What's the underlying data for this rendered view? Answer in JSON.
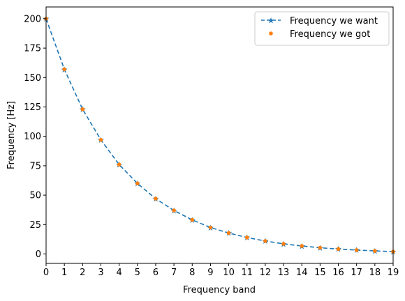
{
  "chart_data": {
    "type": "line",
    "title": "",
    "xlabel": "Frequency band",
    "ylabel": "Frequency [Hz]",
    "xlim": [
      0,
      19
    ],
    "ylim": [
      -8,
      210
    ],
    "x_ticks": [
      0,
      1,
      2,
      3,
      4,
      5,
      6,
      7,
      8,
      9,
      10,
      11,
      12,
      13,
      14,
      15,
      16,
      17,
      18,
      19
    ],
    "y_ticks": [
      0,
      25,
      50,
      75,
      100,
      125,
      150,
      175,
      200
    ],
    "grid": false,
    "legend_position": "top-right",
    "x": [
      0,
      1,
      2,
      3,
      4,
      5,
      6,
      7,
      8,
      9,
      10,
      11,
      12,
      13,
      14,
      15,
      16,
      17,
      18,
      19
    ],
    "series": [
      {
        "name": "Frequency we want",
        "style": "dashed line with star markers",
        "color": "#1f77b4",
        "values": [
          200,
          157,
          123,
          97,
          76,
          60,
          47,
          37,
          29,
          22.5,
          17.8,
          14,
          11,
          8.6,
          6.8,
          5.3,
          4.2,
          3.3,
          2.6,
          2
        ]
      },
      {
        "name": "Frequency we got",
        "style": "dot markers",
        "color": "#ff7f0e",
        "values": [
          200,
          157,
          123,
          97,
          76,
          60,
          47,
          37,
          29,
          22.5,
          17.8,
          14,
          11,
          8.6,
          6.8,
          5.3,
          4.2,
          3.3,
          2.6,
          2
        ]
      }
    ]
  }
}
